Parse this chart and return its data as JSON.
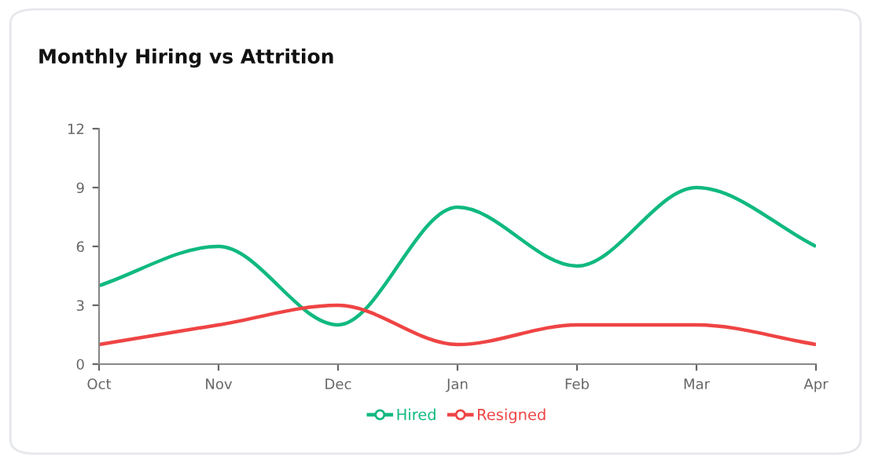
{
  "chart_data": {
    "type": "line",
    "title": "Monthly Hiring vs Attrition",
    "categories": [
      "Oct",
      "Nov",
      "Dec",
      "Jan",
      "Feb",
      "Mar",
      "Apr"
    ],
    "series": [
      {
        "name": "Hired",
        "color": "#10b981",
        "values": [
          4,
          6,
          2,
          8,
          5,
          9,
          6
        ]
      },
      {
        "name": "Resigned",
        "color": "#ef4444",
        "values": [
          1,
          2,
          3,
          1,
          2,
          2,
          1
        ]
      }
    ],
    "ylim": [
      0,
      12
    ],
    "yticks": [
      0,
      3,
      6,
      9,
      12
    ],
    "grid": false,
    "legend": "bottom"
  }
}
